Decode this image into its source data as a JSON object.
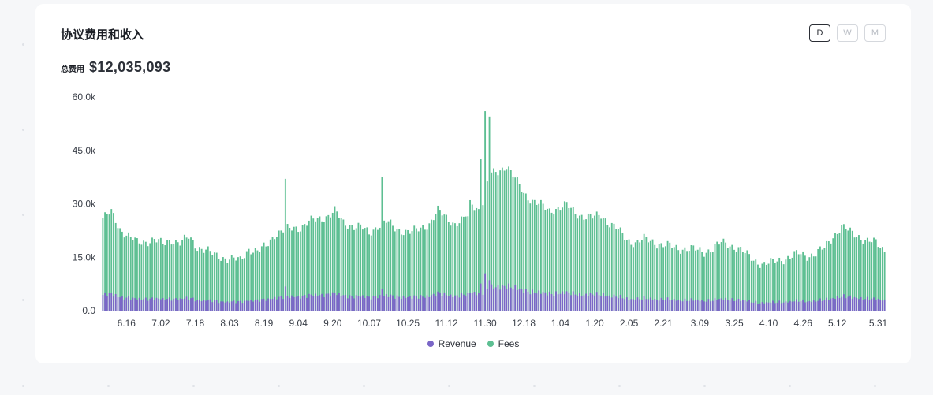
{
  "header": {
    "title": "协议费用和收入",
    "total_label": "总费用",
    "total_value": "$12,035,093"
  },
  "period_buttons": [
    {
      "label": "D",
      "active": true
    },
    {
      "label": "W",
      "active": false
    },
    {
      "label": "M",
      "active": false
    }
  ],
  "legend": [
    {
      "label": "Revenue",
      "color": "#7a66c7"
    },
    {
      "label": "Fees",
      "color": "#5dbf92"
    }
  ],
  "chart_data": {
    "type": "bar",
    "stacked": true,
    "title": "协议费用和收入",
    "xlabel": "",
    "ylabel": "",
    "ylim": [
      0,
      60000
    ],
    "y_ticks": [
      0,
      15000,
      30000,
      45000,
      60000
    ],
    "y_tick_labels": [
      "0.0",
      "15.0k",
      "30.0k",
      "45.0k",
      "60.0k"
    ],
    "x_tick_labels": [
      "6.16",
      "7.02",
      "7.18",
      "8.03",
      "8.19",
      "9.04",
      "9.20",
      "10.07",
      "10.25",
      "11.12",
      "11.30",
      "12.18",
      "1.04",
      "1.20",
      "2.05",
      "2.21",
      "3.09",
      "3.25",
      "4.10",
      "4.26",
      "5.12",
      "5.31"
    ],
    "x_tick_bar_index": [
      11,
      27,
      43,
      59,
      75,
      91,
      107,
      124,
      142,
      160,
      178,
      196,
      213,
      229,
      245,
      261,
      278,
      294,
      310,
      326,
      342,
      361
    ],
    "anchors_fees": [
      [
        0,
        26000
      ],
      [
        4,
        27500
      ],
      [
        8,
        23000
      ],
      [
        12,
        21000
      ],
      [
        16,
        19000
      ],
      [
        20,
        19500
      ],
      [
        24,
        20000
      ],
      [
        28,
        18500
      ],
      [
        32,
        20000
      ],
      [
        36,
        19000
      ],
      [
        40,
        20500
      ],
      [
        44,
        18000
      ],
      [
        48,
        17000
      ],
      [
        52,
        15500
      ],
      [
        56,
        15000
      ],
      [
        60,
        14500
      ],
      [
        64,
        14000
      ],
      [
        68,
        17500
      ],
      [
        72,
        16500
      ],
      [
        76,
        18000
      ],
      [
        80,
        21500
      ],
      [
        84,
        22500
      ],
      [
        88,
        23000
      ],
      [
        92,
        23500
      ],
      [
        96,
        25000
      ],
      [
        100,
        25500
      ],
      [
        104,
        26500
      ],
      [
        108,
        28000
      ],
      [
        112,
        24500
      ],
      [
        116,
        24000
      ],
      [
        120,
        23500
      ],
      [
        124,
        21500
      ],
      [
        128,
        24000
      ],
      [
        132,
        25000
      ],
      [
        136,
        23000
      ],
      [
        140,
        22500
      ],
      [
        144,
        22000
      ],
      [
        148,
        23000
      ],
      [
        152,
        24500
      ],
      [
        156,
        28000
      ],
      [
        160,
        26000
      ],
      [
        164,
        24500
      ],
      [
        168,
        25500
      ],
      [
        172,
        30000
      ],
      [
        176,
        28000
      ],
      [
        180,
        38000
      ],
      [
        184,
        39000
      ],
      [
        188,
        41000
      ],
      [
        192,
        37000
      ],
      [
        196,
        33000
      ],
      [
        200,
        31000
      ],
      [
        204,
        29500
      ],
      [
        208,
        28000
      ],
      [
        212,
        29000
      ],
      [
        216,
        29500
      ],
      [
        220,
        27500
      ],
      [
        224,
        26500
      ],
      [
        228,
        26000
      ],
      [
        232,
        27000
      ],
      [
        236,
        24500
      ],
      [
        240,
        22500
      ],
      [
        244,
        20000
      ],
      [
        248,
        19000
      ],
      [
        252,
        20000
      ],
      [
        256,
        19500
      ],
      [
        260,
        18500
      ],
      [
        264,
        18000
      ],
      [
        268,
        17500
      ],
      [
        272,
        17500
      ],
      [
        276,
        17000
      ],
      [
        280,
        16500
      ],
      [
        284,
        17500
      ],
      [
        288,
        19000
      ],
      [
        292,
        18500
      ],
      [
        296,
        17500
      ],
      [
        300,
        15500
      ],
      [
        304,
        14000
      ],
      [
        308,
        13000
      ],
      [
        312,
        13500
      ],
      [
        316,
        14500
      ],
      [
        320,
        15000
      ],
      [
        324,
        16000
      ],
      [
        328,
        15500
      ],
      [
        332,
        16000
      ],
      [
        336,
        17500
      ],
      [
        340,
        21000
      ],
      [
        344,
        23500
      ],
      [
        348,
        22000
      ],
      [
        352,
        21000
      ],
      [
        356,
        19500
      ],
      [
        360,
        19000
      ],
      [
        364,
        17000
      ]
    ],
    "spikes_fees": [
      {
        "index": 85,
        "value": 37000
      },
      {
        "index": 130,
        "value": 37500
      },
      {
        "index": 171,
        "value": 31000
      },
      {
        "index": 176,
        "value": 42500
      },
      {
        "index": 178,
        "value": 56000
      },
      {
        "index": 180,
        "value": 54500
      },
      {
        "index": 170,
        "value": 26500
      }
    ],
    "bar_count": 365,
    "series": [
      {
        "name": "Revenue",
        "color": "#7a66c7",
        "fraction_of_fees": 0.17
      },
      {
        "name": "Fees",
        "color": "#5dbf92"
      }
    ]
  }
}
